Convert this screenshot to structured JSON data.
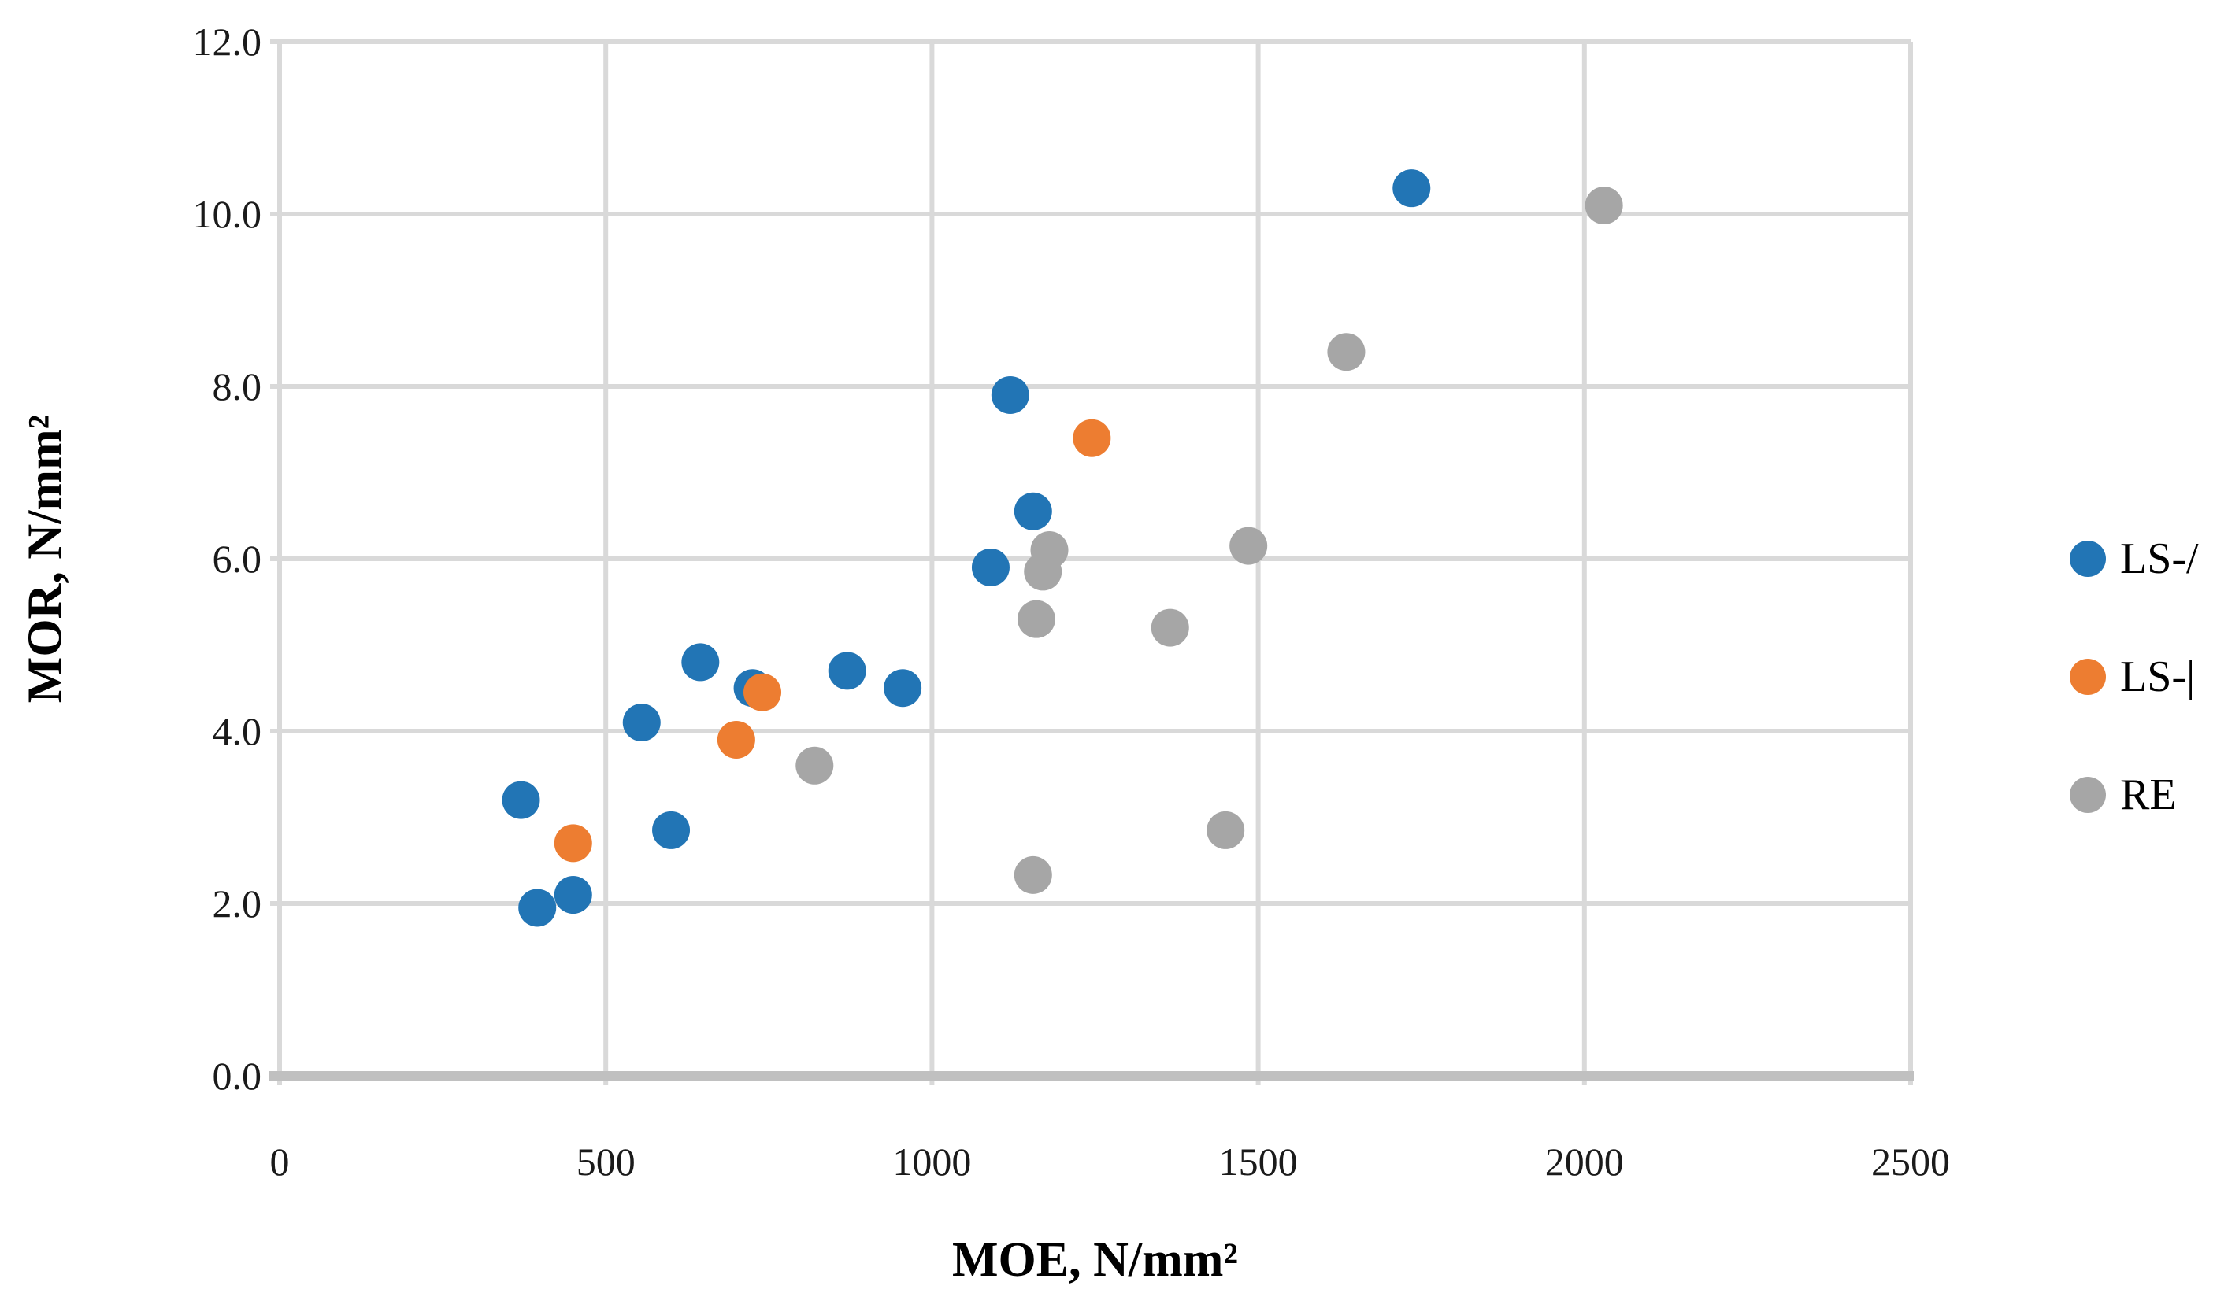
{
  "chart_data": {
    "type": "scatter",
    "title": "",
    "xlabel": "MOE, N/mm²",
    "ylabel": "MOR, N/mm²",
    "xlim": [
      0,
      2500
    ],
    "ylim": [
      0,
      12
    ],
    "x_ticks": [
      "0",
      "500",
      "1000",
      "1500",
      "2000",
      "2500"
    ],
    "y_ticks": [
      "0.0",
      "2.0",
      "4.0",
      "6.0",
      "8.0",
      "10.0",
      "12.0"
    ],
    "grid": true,
    "legend_position": "right",
    "series": [
      {
        "name": "LS-/",
        "color": "#2275B5",
        "points": [
          [
            370,
            3.2
          ],
          [
            395,
            1.95
          ],
          [
            450,
            2.1
          ],
          [
            555,
            4.1
          ],
          [
            600,
            2.85
          ],
          [
            645,
            4.8
          ],
          [
            725,
            4.5
          ],
          [
            870,
            4.7
          ],
          [
            955,
            4.5
          ],
          [
            1090,
            5.9
          ],
          [
            1120,
            7.9
          ],
          [
            1155,
            6.55
          ],
          [
            1735,
            10.3
          ]
        ]
      },
      {
        "name": "LS-|",
        "color": "#ED7D31",
        "points": [
          [
            450,
            2.7
          ],
          [
            700,
            3.9
          ],
          [
            740,
            4.45
          ],
          [
            1245,
            7.4
          ]
        ]
      },
      {
        "name": "RE",
        "color": "#A6A6A6",
        "points": [
          [
            820,
            3.6
          ],
          [
            1155,
            2.33
          ],
          [
            1160,
            5.3
          ],
          [
            1170,
            5.85
          ],
          [
            1180,
            6.1
          ],
          [
            1365,
            5.2
          ],
          [
            1450,
            2.85
          ],
          [
            1485,
            6.15
          ],
          [
            1635,
            8.4
          ],
          [
            2030,
            10.1
          ]
        ]
      }
    ],
    "styles": {
      "gridline_color": "#D9D9D9",
      "axis_line_color": "#C0C0C0",
      "tick_label_color": "#1a1a1a",
      "point_radius": 24
    }
  }
}
